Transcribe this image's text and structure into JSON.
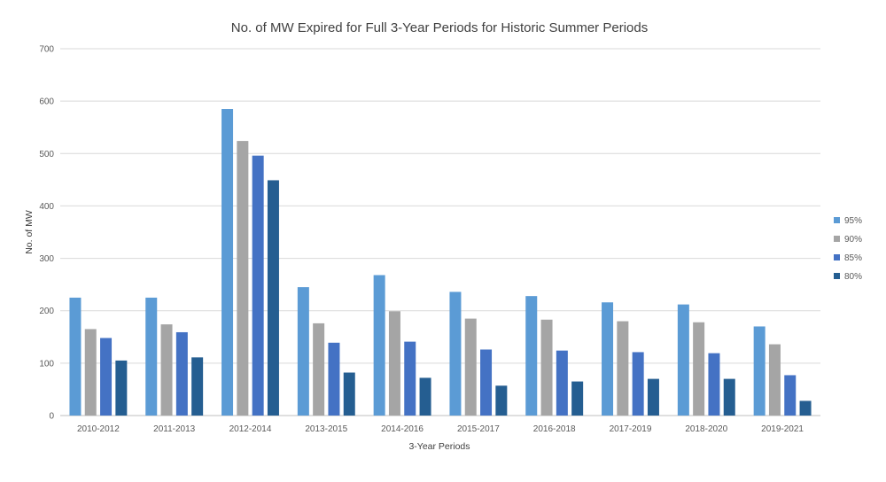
{
  "chart_data": {
    "type": "bar",
    "title": "No. of MW Expired for Full 3-Year Periods for Historic Summer Periods",
    "xlabel": "3-Year Periods",
    "ylabel": "No. of MW",
    "ylim": [
      0,
      700
    ],
    "yticks": [
      0,
      100,
      200,
      300,
      400,
      500,
      600,
      700
    ],
    "grid": true,
    "legend_position": "right",
    "categories": [
      "2010-2012",
      "2011-2013",
      "2012-2014",
      "2013-2015",
      "2014-2016",
      "2015-2017",
      "2016-2018",
      "2017-2019",
      "2018-2020",
      "2019-2021"
    ],
    "series": [
      {
        "name": "95%",
        "color": "#5b9bd5",
        "values": [
          225,
          225,
          585,
          245,
          268,
          236,
          228,
          216,
          212,
          170
        ]
      },
      {
        "name": "90%",
        "color": "#a5a5a5",
        "values": [
          165,
          174,
          524,
          176,
          199,
          185,
          183,
          180,
          178,
          136
        ]
      },
      {
        "name": "85%",
        "color": "#4472c4",
        "values": [
          148,
          159,
          496,
          139,
          141,
          126,
          124,
          121,
          119,
          77
        ]
      },
      {
        "name": "80%",
        "color": "#255e91",
        "values": [
          105,
          111,
          449,
          82,
          72,
          57,
          65,
          70,
          70,
          28
        ]
      }
    ]
  }
}
